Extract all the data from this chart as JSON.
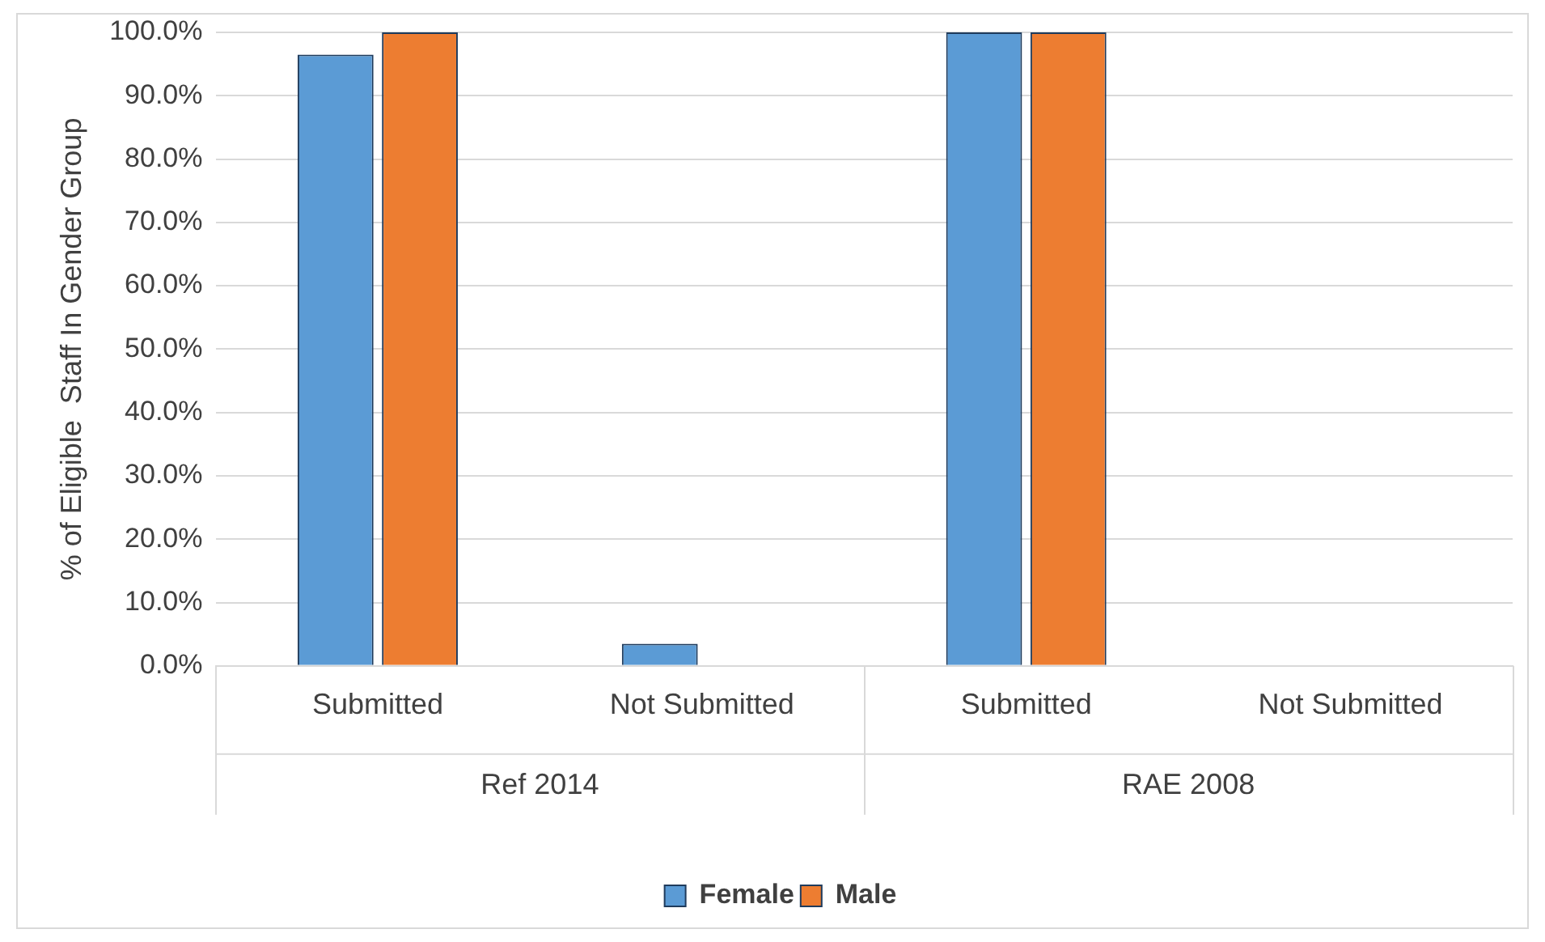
{
  "chart_data": {
    "type": "bar",
    "ylabel": "% of Eligible  Staff In Gender Group",
    "categories": [
      "Submitted",
      "Not Submitted",
      "Submitted",
      "Not Submitted"
    ],
    "series": [
      {
        "name": "Female",
        "color": "#5b9bd5",
        "values": [
          96.5,
          3.5,
          100,
          0
        ]
      },
      {
        "name": "Male",
        "color": "#ed7d31",
        "values": [
          100,
          0,
          100,
          0
        ]
      }
    ],
    "annotations": [
      "Ref 2014",
      "RAE 2008"
    ],
    "ylim": [
      0,
      100
    ],
    "yticks": [
      {
        "value": 0,
        "label": "0.0%"
      },
      {
        "value": 10,
        "label": "10.0%"
      },
      {
        "value": 20,
        "label": "20.0%"
      },
      {
        "value": 30,
        "label": "30.0%"
      },
      {
        "value": 40,
        "label": "40.0%"
      },
      {
        "value": 50,
        "label": "50.0%"
      },
      {
        "value": 60,
        "label": "60.0%"
      },
      {
        "value": 70,
        "label": "70.0%"
      },
      {
        "value": 80,
        "label": "80.0%"
      },
      {
        "value": 90,
        "label": "90.0%"
      },
      {
        "value": 100,
        "label": "100.0%"
      }
    ],
    "grid": "y",
    "legend": "bottom"
  }
}
